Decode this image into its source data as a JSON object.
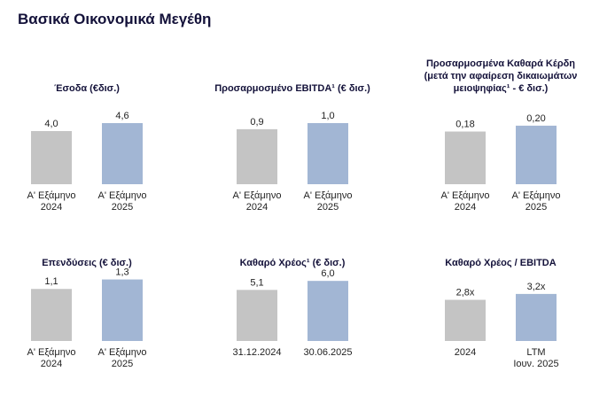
{
  "page": {
    "title": "Βασικά Οικονομικά Μεγέθη"
  },
  "colors": {
    "prior": "#c4c4c4",
    "current": "#a2b6d4",
    "title": "#14123a"
  },
  "chart_data": [
    {
      "type": "bar",
      "title": [
        "Έσοδα (€δισ.)"
      ],
      "categories": [
        [
          "Α' Εξάμηνο",
          "2024"
        ],
        [
          "Α' Εξάμηνο",
          "2025"
        ]
      ],
      "values": [
        4.0,
        4.6
      ],
      "value_labels": [
        "4,0",
        "4,6"
      ],
      "ylim": [
        0,
        5.2
      ]
    },
    {
      "type": "bar",
      "title": [
        "Προσαρμοσμένο EBITDA¹ (€ δισ.)"
      ],
      "categories": [
        [
          "Α' Εξάμηνο",
          "2024"
        ],
        [
          "Α' Εξάμηνο",
          "2025"
        ]
      ],
      "values": [
        0.9,
        1.0
      ],
      "value_labels": [
        "0,9",
        "1,0"
      ],
      "ylim": [
        0,
        1.13
      ]
    },
    {
      "type": "bar",
      "title": [
        "Προσαρμοσμένα Καθαρά Κέρδη",
        "(μετά την αφαίρεση δικαιωμάτων",
        "μειοψηφίας¹ - € δισ.)"
      ],
      "categories": [
        [
          "Α' Εξάμηνο",
          "2024"
        ],
        [
          "Α' Εξάμηνο",
          "2025"
        ]
      ],
      "values": [
        0.18,
        0.2
      ],
      "value_labels": [
        "0,18",
        "0,20"
      ],
      "ylim": [
        0,
        0.236
      ]
    },
    {
      "type": "bar",
      "title": [
        "Επενδύσεις (€ δισ.)"
      ],
      "categories": [
        [
          "Α' Εξάμηνο",
          "2024"
        ],
        [
          "Α' Εξάμηνο",
          "2025"
        ]
      ],
      "values": [
        1.1,
        1.3
      ],
      "value_labels": [
        "1,1",
        "1,3"
      ],
      "ylim": [
        0,
        1.46
      ]
    },
    {
      "type": "bar",
      "title": [
        "Καθαρό Χρέος¹ (€ δισ.)"
      ],
      "categories": [
        [
          "31.12.2024"
        ],
        [
          "30.06.2025"
        ]
      ],
      "values": [
        5.1,
        6.0
      ],
      "value_labels": [
        "5,1",
        "6,0"
      ],
      "ylim": [
        0,
        6.9
      ]
    },
    {
      "type": "bar",
      "title": [
        "Καθαρό Χρέος / EBITDA"
      ],
      "categories": [
        [
          "2024"
        ],
        [
          "LTM",
          "Ιουν. 2025"
        ]
      ],
      "values": [
        2.8,
        3.2
      ],
      "value_labels": [
        "2,8x",
        "3,2x"
      ],
      "ylim": [
        0,
        4.7
      ]
    }
  ]
}
